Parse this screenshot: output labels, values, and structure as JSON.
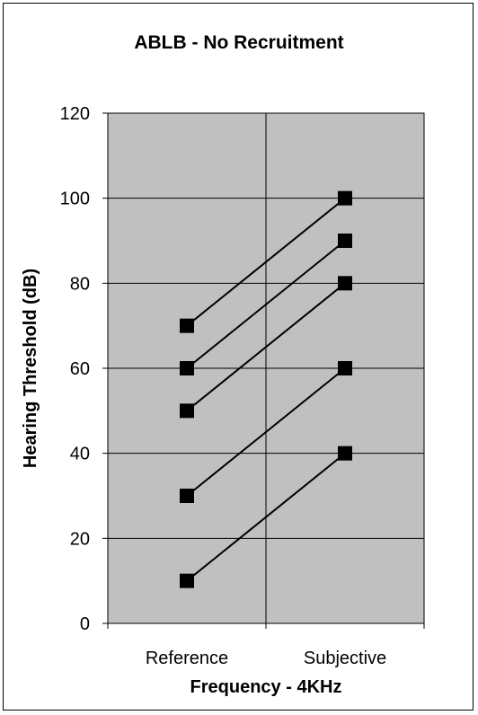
{
  "chart_data": {
    "type": "line",
    "title": "ABLB - No Recruitment",
    "xlabel": "Frequency - 4KHz",
    "ylabel": "Hearing Threshold (dB)",
    "categories": [
      "Reference",
      "Subjective"
    ],
    "ylim": [
      0,
      120
    ],
    "yticks": [
      0,
      20,
      40,
      60,
      80,
      100,
      120
    ],
    "grid": true,
    "legend": "none",
    "plot_background": "#c0c0c0",
    "series": [
      {
        "values": [
          70,
          100
        ]
      },
      {
        "values": [
          60,
          90
        ]
      },
      {
        "values": [
          50,
          80
        ]
      },
      {
        "values": [
          30,
          60
        ]
      },
      {
        "values": [
          10,
          40
        ]
      }
    ]
  }
}
